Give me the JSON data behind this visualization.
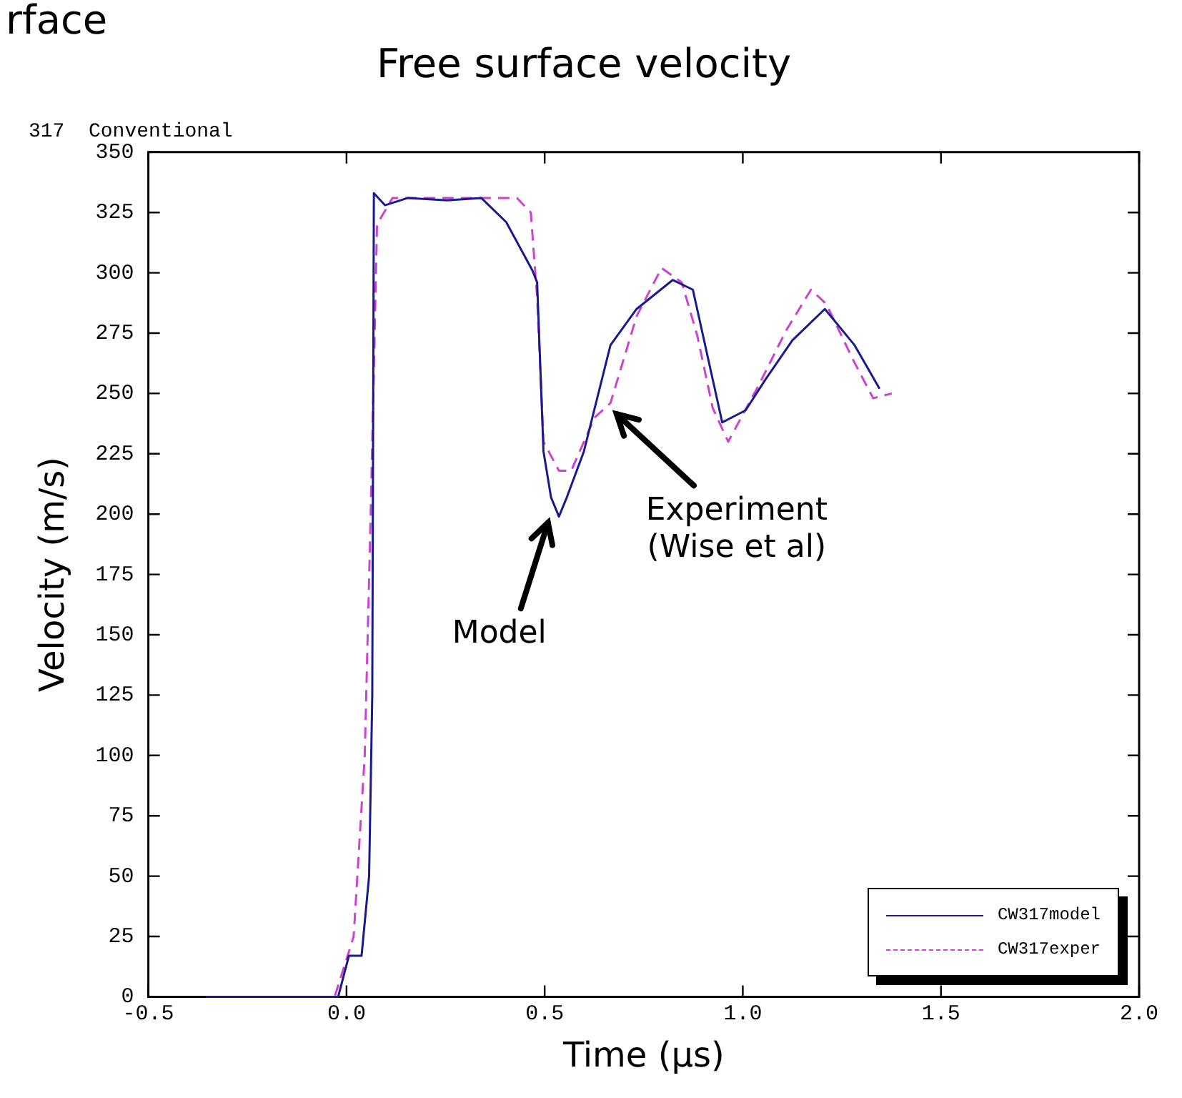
{
  "chart_data": {
    "type": "line",
    "title": "Free surface velocity",
    "subtitle": "317  Conventional",
    "xlabel": "Time (μs)",
    "ylabel": "Velocity (m/s)",
    "xlim": [
      -0.5,
      2.0
    ],
    "xticks": [
      -0.5,
      {
        "value": 0,
        "label": "0.0"
      },
      0.5,
      {
        "value": 1,
        "label": "1.0"
      },
      1.5,
      {
        "value": 2,
        "label": "2.0"
      }
    ],
    "ylim": [
      0,
      350
    ],
    "yticks": [
      0,
      25,
      50,
      75,
      100,
      125,
      150,
      175,
      200,
      225,
      250,
      275,
      300,
      325,
      350
    ],
    "grid": false,
    "legend": "bottom right",
    "marker": "none",
    "series": [
      {
        "name": "CW317model",
        "color": "#1a1a8c",
        "line_style": "solid",
        "x": [
          -0.355,
          -0.021,
          0.006,
          0.038,
          0.057,
          0.065,
          0.069,
          0.097,
          0.155,
          0.254,
          0.34,
          0.403,
          0.469,
          0.481,
          0.497,
          0.516,
          0.536,
          0.556,
          0.599,
          0.666,
          0.732,
          0.823,
          0.874,
          0.913,
          0.948,
          1.007,
          1.058,
          1.125,
          1.207,
          1.282,
          1.345
        ],
        "values": [
          0,
          0,
          17,
          17,
          50,
          125,
          333,
          328,
          331,
          330,
          331,
          321,
          301,
          296,
          226,
          207,
          199,
          207,
          226,
          270,
          285,
          297,
          293,
          264,
          238,
          243,
          256,
          272,
          285,
          270,
          252
        ]
      },
      {
        "name": "CW317exper",
        "color": "#cc44cc",
        "line_style": "dashed",
        "x": [
          -0.355,
          -0.03,
          0.018,
          0.046,
          0.061,
          0.077,
          0.116,
          0.2,
          0.43,
          0.465,
          0.481,
          0.497,
          0.536,
          0.567,
          0.626,
          0.666,
          0.732,
          0.795,
          0.846,
          0.885,
          0.924,
          0.963,
          1.042,
          1.109,
          1.172,
          1.211,
          1.278,
          1.329,
          1.376
        ],
        "values": [
          0,
          0,
          25,
          100,
          200,
          320,
          331,
          331,
          331,
          325,
          290,
          230,
          218,
          218,
          240,
          246,
          282,
          302,
          296,
          274,
          244,
          230,
          254,
          276,
          293,
          287,
          264,
          248,
          250
        ]
      }
    ],
    "annotations": [
      {
        "text": "Model",
        "x": 0.53,
        "y": 200
      },
      {
        "text": "Experiment\n(Wise et al)",
        "x": 0.66,
        "y": 245
      },
      "rface"
    ]
  }
}
